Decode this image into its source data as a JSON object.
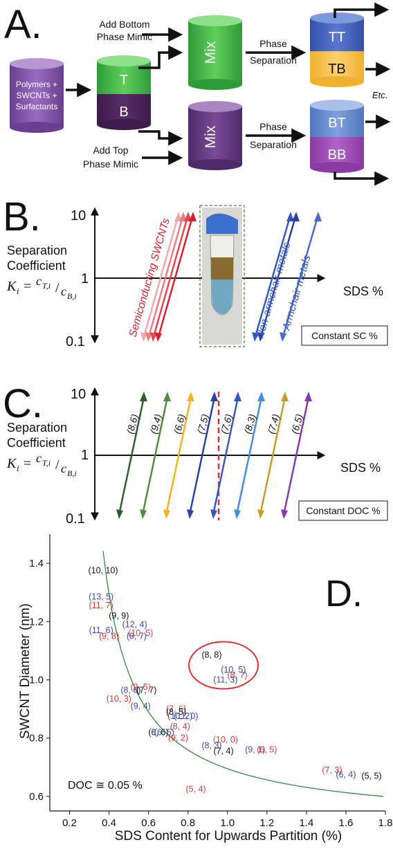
{
  "panel_a": {
    "letter": "A.",
    "source_lines": [
      "Polymers +",
      "SWCNTs +",
      "Surfactants"
    ],
    "top_phase": "T",
    "bottom_phase": "B",
    "add_bottom_lines": [
      "Add Bottom",
      "Phase Mimic"
    ],
    "add_top_lines": [
      "Add Top",
      "Phase Mimic"
    ],
    "mix_label": "Mix",
    "phase_sep_lines": [
      "Phase",
      "Separation"
    ],
    "tt": "TT",
    "tb": "TB",
    "bt": "BT",
    "bb": "BB",
    "etc": "Etc."
  },
  "panel_b": {
    "letter": "B.",
    "y_top": "10",
    "y_mid": "1",
    "y_bot": "0.1",
    "coef_lines": [
      "Separation",
      "Coefficient"
    ],
    "formula_k": "K",
    "formula_i": "i",
    "formula_eq": "=",
    "formula_ct": "c",
    "formula_ct_sub": "T,i",
    "formula_cb": "c",
    "formula_cb_sub": "B,i",
    "x_label": "SDS %",
    "semi_label": "Semiconducting SWCNTs",
    "nonarm_label": "Non-armchair metals",
    "arm_label": "Armchair metals",
    "const_box": "Constant SC %"
  },
  "panel_c": {
    "letter": "C.",
    "y_top": "10",
    "y_mid": "1",
    "y_bot": "0.1",
    "coef_lines": [
      "Separation",
      "Coefficient"
    ],
    "x_label": "SDS %",
    "const_box": "Constant DOC %",
    "chiralities": [
      {
        "label": "(8,6)",
        "color": "#2e5e2a"
      },
      {
        "label": "(9,4)",
        "color": "#4f8f3a"
      },
      {
        "label": "(6,6)",
        "color": "#f2b31d"
      },
      {
        "label": "(7,5)",
        "color": "#2b3fa6"
      },
      {
        "label": "(7,6)",
        "color": "#3558c4"
      },
      {
        "label": "(8,3)",
        "color": "#3f8fdc"
      },
      {
        "label": "(7,4)",
        "color": "#c89a2a"
      },
      {
        "label": "(6,5)",
        "color": "#8a36b0"
      }
    ]
  },
  "panel_d": {
    "letter": "D.",
    "annotation": "DOC ≅ 0.05 %"
  },
  "chart_data": {
    "type": "scatter",
    "xlabel": "SDS Content for Upwards Partition (%)",
    "ylabel": "SWCNT Diameter (nm)",
    "xlim": [
      0.1,
      1.8
    ],
    "ylim": [
      0.55,
      1.5
    ],
    "x_ticks": [
      "0.2",
      "0.4",
      "0.6",
      "0.8",
      "1.0",
      "1.2",
      "1.4",
      "1.6",
      "1.8"
    ],
    "y_ticks": [
      "0.6",
      "0.8",
      "1.0",
      "1.2",
      "1.4"
    ],
    "series_colors": {
      "armchair": "#111111",
      "semiconducting": "#3a4aa8",
      "metallic": "#d83a3a"
    },
    "points": [
      {
        "label": "(10, 10)",
        "x": 0.37,
        "y": 1.375,
        "group": "armchair"
      },
      {
        "label": "(13, 5)",
        "x": 0.36,
        "y": 1.285,
        "group": "semiconducting"
      },
      {
        "label": "(11, 7)",
        "x": 0.36,
        "y": 1.255,
        "group": "metallic"
      },
      {
        "label": "(9, 9)",
        "x": 0.45,
        "y": 1.22,
        "group": "armchair"
      },
      {
        "label": "(11, 6)",
        "x": 0.36,
        "y": 1.17,
        "group": "semiconducting"
      },
      {
        "label": "(9, 8)",
        "x": 0.4,
        "y": 1.15,
        "group": "metallic"
      },
      {
        "label": "(12, 4)",
        "x": 0.53,
        "y": 1.19,
        "group": "semiconducting"
      },
      {
        "label": "(10, 5)",
        "x": 0.56,
        "y": 1.16,
        "group": "metallic"
      },
      {
        "label": "(9, 7)",
        "x": 0.54,
        "y": 1.15,
        "group": "semiconducting"
      },
      {
        "label": "(8, 8)",
        "x": 0.92,
        "y": 1.085,
        "group": "armchair"
      },
      {
        "label": "(10, 5)",
        "x": 1.03,
        "y": 1.035,
        "group": "semiconducting"
      },
      {
        "label": "(8, 7)",
        "x": 1.05,
        "y": 1.015,
        "group": "metallic"
      },
      {
        "label": "(11, 3)",
        "x": 0.99,
        "y": 1.0,
        "group": "semiconducting"
      },
      {
        "label": "(8, 6)",
        "x": 0.51,
        "y": 0.965,
        "group": "semiconducting"
      },
      {
        "label": "(7, 7)",
        "x": 0.59,
        "y": 0.965,
        "group": "armchair"
      },
      {
        "label": "(9, 5)",
        "x": 0.56,
        "y": 0.975,
        "group": "metallic"
      },
      {
        "label": "(10, 3)",
        "x": 0.45,
        "y": 0.935,
        "group": "metallic"
      },
      {
        "label": "(9, 4)",
        "x": 0.56,
        "y": 0.91,
        "group": "semiconducting"
      },
      {
        "label": "(7, 6)",
        "x": 0.74,
        "y": 0.9,
        "group": "metallic"
      },
      {
        "label": "(8, 5)",
        "x": 0.74,
        "y": 0.89,
        "group": "armchair"
      },
      {
        "label": "(10, 2)",
        "x": 0.76,
        "y": 0.875,
        "group": "semiconducting"
      },
      {
        "label": "(11, 0)",
        "x": 0.79,
        "y": 0.875,
        "group": "semiconducting"
      },
      {
        "label": "(8, 4)",
        "x": 0.76,
        "y": 0.84,
        "group": "metallic"
      },
      {
        "label": "(6, 6)",
        "x": 0.65,
        "y": 0.82,
        "group": "armchair"
      },
      {
        "label": "(6, 5)",
        "x": 0.68,
        "y": 0.82,
        "group": "semiconducting"
      },
      {
        "label": "(9, 2)",
        "x": 0.75,
        "y": 0.8,
        "group": "metallic"
      },
      {
        "label": "(10, 0)",
        "x": 0.99,
        "y": 0.795,
        "group": "metallic"
      },
      {
        "label": "(8, 3)",
        "x": 0.92,
        "y": 0.775,
        "group": "semiconducting"
      },
      {
        "label": "(7, 4)",
        "x": 0.98,
        "y": 0.755,
        "group": "armchair"
      },
      {
        "label": "(9, 1)",
        "x": 1.14,
        "y": 0.76,
        "group": "semiconducting"
      },
      {
        "label": "(6, 5)",
        "x": 1.2,
        "y": 0.76,
        "group": "metallic"
      },
      {
        "label": "(7, 3)",
        "x": 1.53,
        "y": 0.69,
        "group": "metallic"
      },
      {
        "label": "(6, 4)",
        "x": 1.6,
        "y": 0.675,
        "group": "semiconducting"
      },
      {
        "label": "(5, 5)",
        "x": 1.73,
        "y": 0.67,
        "group": "armchair"
      },
      {
        "label": "(5, 4)",
        "x": 0.84,
        "y": 0.625,
        "group": "metallic"
      }
    ],
    "fit_curve": {
      "color": "#2f8a3a",
      "a": 0.5,
      "b": 0.27
    }
  }
}
